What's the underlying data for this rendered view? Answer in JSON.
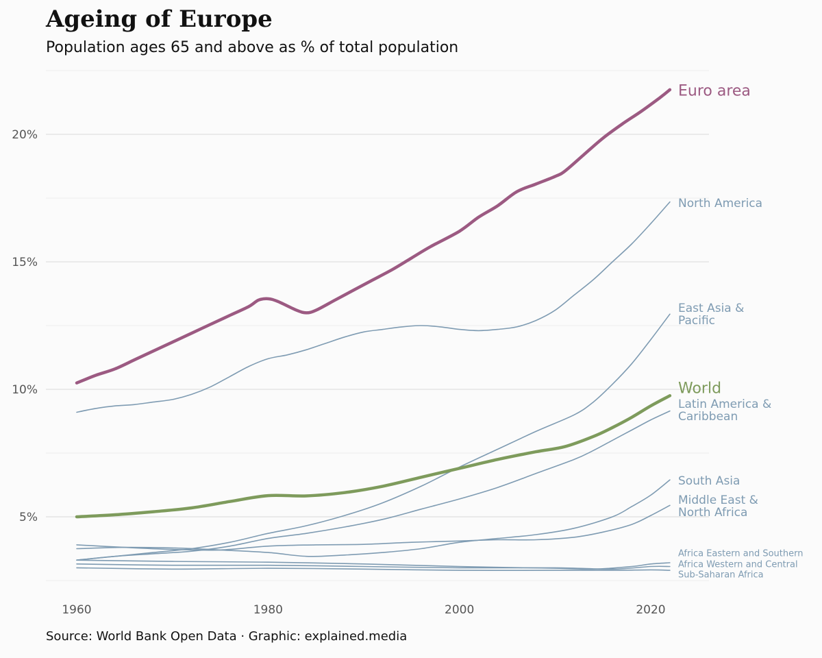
{
  "title": "Ageing of Europe",
  "subtitle": "Population ages 65 and above as % of total population",
  "source": "Source: World Bank Open Data · Graphic: explained.media",
  "colors": {
    "euro": "#9c5a82",
    "world": "#7e9b5c",
    "regions": "#7e9bb2",
    "grid": "#e4e4e4",
    "tick": "#555555"
  },
  "chart_data": {
    "type": "line",
    "x_ticks": [
      1960,
      1980,
      2000,
      2020
    ],
    "y_ticks": [
      5,
      10,
      15,
      20
    ],
    "y_tick_labels": [
      "5%",
      "10%",
      "15%",
      "20%"
    ],
    "xlim": [
      1957,
      2025
    ],
    "ylim": [
      2.8,
      22.5
    ],
    "grid": true,
    "series": [
      {
        "name": "Euro area",
        "label_lines": [
          "Euro area"
        ],
        "style": "euro",
        "points": [
          [
            1960,
            10.25
          ],
          [
            1962,
            10.55
          ],
          [
            1964,
            10.8
          ],
          [
            1966,
            11.15
          ],
          [
            1968,
            11.5
          ],
          [
            1970,
            11.85
          ],
          [
            1972,
            12.2
          ],
          [
            1974,
            12.55
          ],
          [
            1976,
            12.9
          ],
          [
            1978,
            13.25
          ],
          [
            1979,
            13.5
          ],
          [
            1980,
            13.55
          ],
          [
            1981,
            13.45
          ],
          [
            1983,
            13.1
          ],
          [
            1984,
            13.0
          ],
          [
            1985,
            13.1
          ],
          [
            1987,
            13.5
          ],
          [
            1989,
            13.9
          ],
          [
            1991,
            14.3
          ],
          [
            1993,
            14.7
          ],
          [
            1995,
            15.15
          ],
          [
            1997,
            15.6
          ],
          [
            2000,
            16.2
          ],
          [
            2002,
            16.75
          ],
          [
            2004,
            17.2
          ],
          [
            2006,
            17.75
          ],
          [
            2008,
            18.05
          ],
          [
            2010,
            18.35
          ],
          [
            2011,
            18.55
          ],
          [
            2013,
            19.2
          ],
          [
            2015,
            19.85
          ],
          [
            2017,
            20.4
          ],
          [
            2019,
            20.9
          ],
          [
            2021,
            21.45
          ],
          [
            2022,
            21.75
          ]
        ]
      },
      {
        "name": "North America",
        "label_lines": [
          "North America"
        ],
        "style": "region",
        "points": [
          [
            1960,
            9.1
          ],
          [
            1962,
            9.25
          ],
          [
            1964,
            9.35
          ],
          [
            1966,
            9.4
          ],
          [
            1968,
            9.5
          ],
          [
            1970,
            9.6
          ],
          [
            1972,
            9.8
          ],
          [
            1974,
            10.1
          ],
          [
            1976,
            10.5
          ],
          [
            1978,
            10.9
          ],
          [
            1980,
            11.2
          ],
          [
            1982,
            11.35
          ],
          [
            1984,
            11.55
          ],
          [
            1986,
            11.8
          ],
          [
            1988,
            12.05
          ],
          [
            1990,
            12.25
          ],
          [
            1992,
            12.35
          ],
          [
            1994,
            12.45
          ],
          [
            1996,
            12.5
          ],
          [
            1998,
            12.45
          ],
          [
            2000,
            12.35
          ],
          [
            2002,
            12.3
          ],
          [
            2004,
            12.35
          ],
          [
            2006,
            12.45
          ],
          [
            2008,
            12.7
          ],
          [
            2010,
            13.1
          ],
          [
            2012,
            13.7
          ],
          [
            2014,
            14.3
          ],
          [
            2016,
            15.0
          ],
          [
            2018,
            15.7
          ],
          [
            2020,
            16.5
          ],
          [
            2022,
            17.35
          ]
        ]
      },
      {
        "name": "East Asia & Pacific",
        "label_lines": [
          "East Asia &",
          "Pacific"
        ],
        "style": "region",
        "points": [
          [
            1960,
            3.3
          ],
          [
            1964,
            3.45
          ],
          [
            1968,
            3.6
          ],
          [
            1972,
            3.75
          ],
          [
            1976,
            4.0
          ],
          [
            1980,
            4.35
          ],
          [
            1984,
            4.65
          ],
          [
            1988,
            5.05
          ],
          [
            1992,
            5.55
          ],
          [
            1996,
            6.2
          ],
          [
            2000,
            6.95
          ],
          [
            2004,
            7.65
          ],
          [
            2008,
            8.35
          ],
          [
            2012,
            9.0
          ],
          [
            2014,
            9.5
          ],
          [
            2016,
            10.2
          ],
          [
            2018,
            11.0
          ],
          [
            2020,
            11.95
          ],
          [
            2022,
            12.95
          ]
        ]
      },
      {
        "name": "World",
        "label_lines": [
          "World"
        ],
        "style": "world",
        "points": [
          [
            1960,
            5.0
          ],
          [
            1964,
            5.08
          ],
          [
            1968,
            5.2
          ],
          [
            1972,
            5.35
          ],
          [
            1976,
            5.6
          ],
          [
            1980,
            5.83
          ],
          [
            1984,
            5.82
          ],
          [
            1988,
            5.95
          ],
          [
            1992,
            6.2
          ],
          [
            1996,
            6.55
          ],
          [
            2000,
            6.9
          ],
          [
            2004,
            7.25
          ],
          [
            2008,
            7.55
          ],
          [
            2011,
            7.75
          ],
          [
            2014,
            8.15
          ],
          [
            2016,
            8.5
          ],
          [
            2018,
            8.9
          ],
          [
            2020,
            9.35
          ],
          [
            2022,
            9.75
          ]
        ]
      },
      {
        "name": "Latin America & Caribbean",
        "label_lines": [
          "Latin America &",
          "Caribbean"
        ],
        "style": "region",
        "points": [
          [
            1960,
            3.3
          ],
          [
            1964,
            3.45
          ],
          [
            1968,
            3.55
          ],
          [
            1972,
            3.65
          ],
          [
            1976,
            3.85
          ],
          [
            1980,
            4.15
          ],
          [
            1984,
            4.35
          ],
          [
            1988,
            4.6
          ],
          [
            1992,
            4.9
          ],
          [
            1996,
            5.3
          ],
          [
            2000,
            5.7
          ],
          [
            2004,
            6.15
          ],
          [
            2008,
            6.7
          ],
          [
            2012,
            7.25
          ],
          [
            2014,
            7.6
          ],
          [
            2016,
            8.0
          ],
          [
            2018,
            8.4
          ],
          [
            2020,
            8.8
          ],
          [
            2022,
            9.15
          ]
        ]
      },
      {
        "name": "South Asia",
        "label_lines": [
          "South Asia"
        ],
        "style": "region",
        "points": [
          [
            1960,
            3.75
          ],
          [
            1965,
            3.8
          ],
          [
            1970,
            3.78
          ],
          [
            1975,
            3.7
          ],
          [
            1980,
            3.6
          ],
          [
            1984,
            3.45
          ],
          [
            1988,
            3.5
          ],
          [
            1992,
            3.6
          ],
          [
            1996,
            3.75
          ],
          [
            2000,
            4.0
          ],
          [
            2004,
            4.15
          ],
          [
            2008,
            4.3
          ],
          [
            2012,
            4.55
          ],
          [
            2016,
            5.0
          ],
          [
            2018,
            5.4
          ],
          [
            2020,
            5.85
          ],
          [
            2022,
            6.45
          ]
        ]
      },
      {
        "name": "Middle East & North Africa",
        "label_lines": [
          "Middle East &",
          "North Africa"
        ],
        "style": "region",
        "points": [
          [
            1960,
            3.9
          ],
          [
            1965,
            3.8
          ],
          [
            1970,
            3.72
          ],
          [
            1975,
            3.7
          ],
          [
            1980,
            3.85
          ],
          [
            1985,
            3.9
          ],
          [
            1990,
            3.92
          ],
          [
            1995,
            4.0
          ],
          [
            2000,
            4.05
          ],
          [
            2004,
            4.1
          ],
          [
            2008,
            4.1
          ],
          [
            2012,
            4.2
          ],
          [
            2015,
            4.4
          ],
          [
            2018,
            4.7
          ],
          [
            2020,
            5.05
          ],
          [
            2022,
            5.45
          ]
        ]
      },
      {
        "name": "Africa Eastern and Southern",
        "label_lines": [
          "Africa Eastern and Southern"
        ],
        "style": "region-small",
        "points": [
          [
            1960,
            3.3
          ],
          [
            1970,
            3.25
          ],
          [
            1980,
            3.22
          ],
          [
            1990,
            3.15
          ],
          [
            2000,
            3.05
          ],
          [
            2010,
            2.98
          ],
          [
            2014,
            2.95
          ],
          [
            2018,
            3.05
          ],
          [
            2020,
            3.15
          ],
          [
            2022,
            3.2
          ]
        ]
      },
      {
        "name": "Africa Western and Central",
        "label_lines": [
          "Africa Western and Central"
        ],
        "style": "region-small",
        "points": [
          [
            1960,
            3.15
          ],
          [
            1970,
            3.1
          ],
          [
            1980,
            3.1
          ],
          [
            1990,
            3.05
          ],
          [
            2000,
            3.0
          ],
          [
            2010,
            3.0
          ],
          [
            2016,
            2.95
          ],
          [
            2020,
            3.05
          ],
          [
            2022,
            3.05
          ]
        ]
      },
      {
        "name": "Sub-Saharan Africa",
        "label_lines": [
          "Sub-Saharan Africa"
        ],
        "style": "region-small",
        "points": [
          [
            1960,
            3.0
          ],
          [
            1970,
            2.95
          ],
          [
            1980,
            2.98
          ],
          [
            1990,
            2.95
          ],
          [
            2000,
            2.9
          ],
          [
            2010,
            2.9
          ],
          [
            2016,
            2.9
          ],
          [
            2020,
            2.92
          ],
          [
            2022,
            2.9
          ]
        ]
      }
    ]
  }
}
